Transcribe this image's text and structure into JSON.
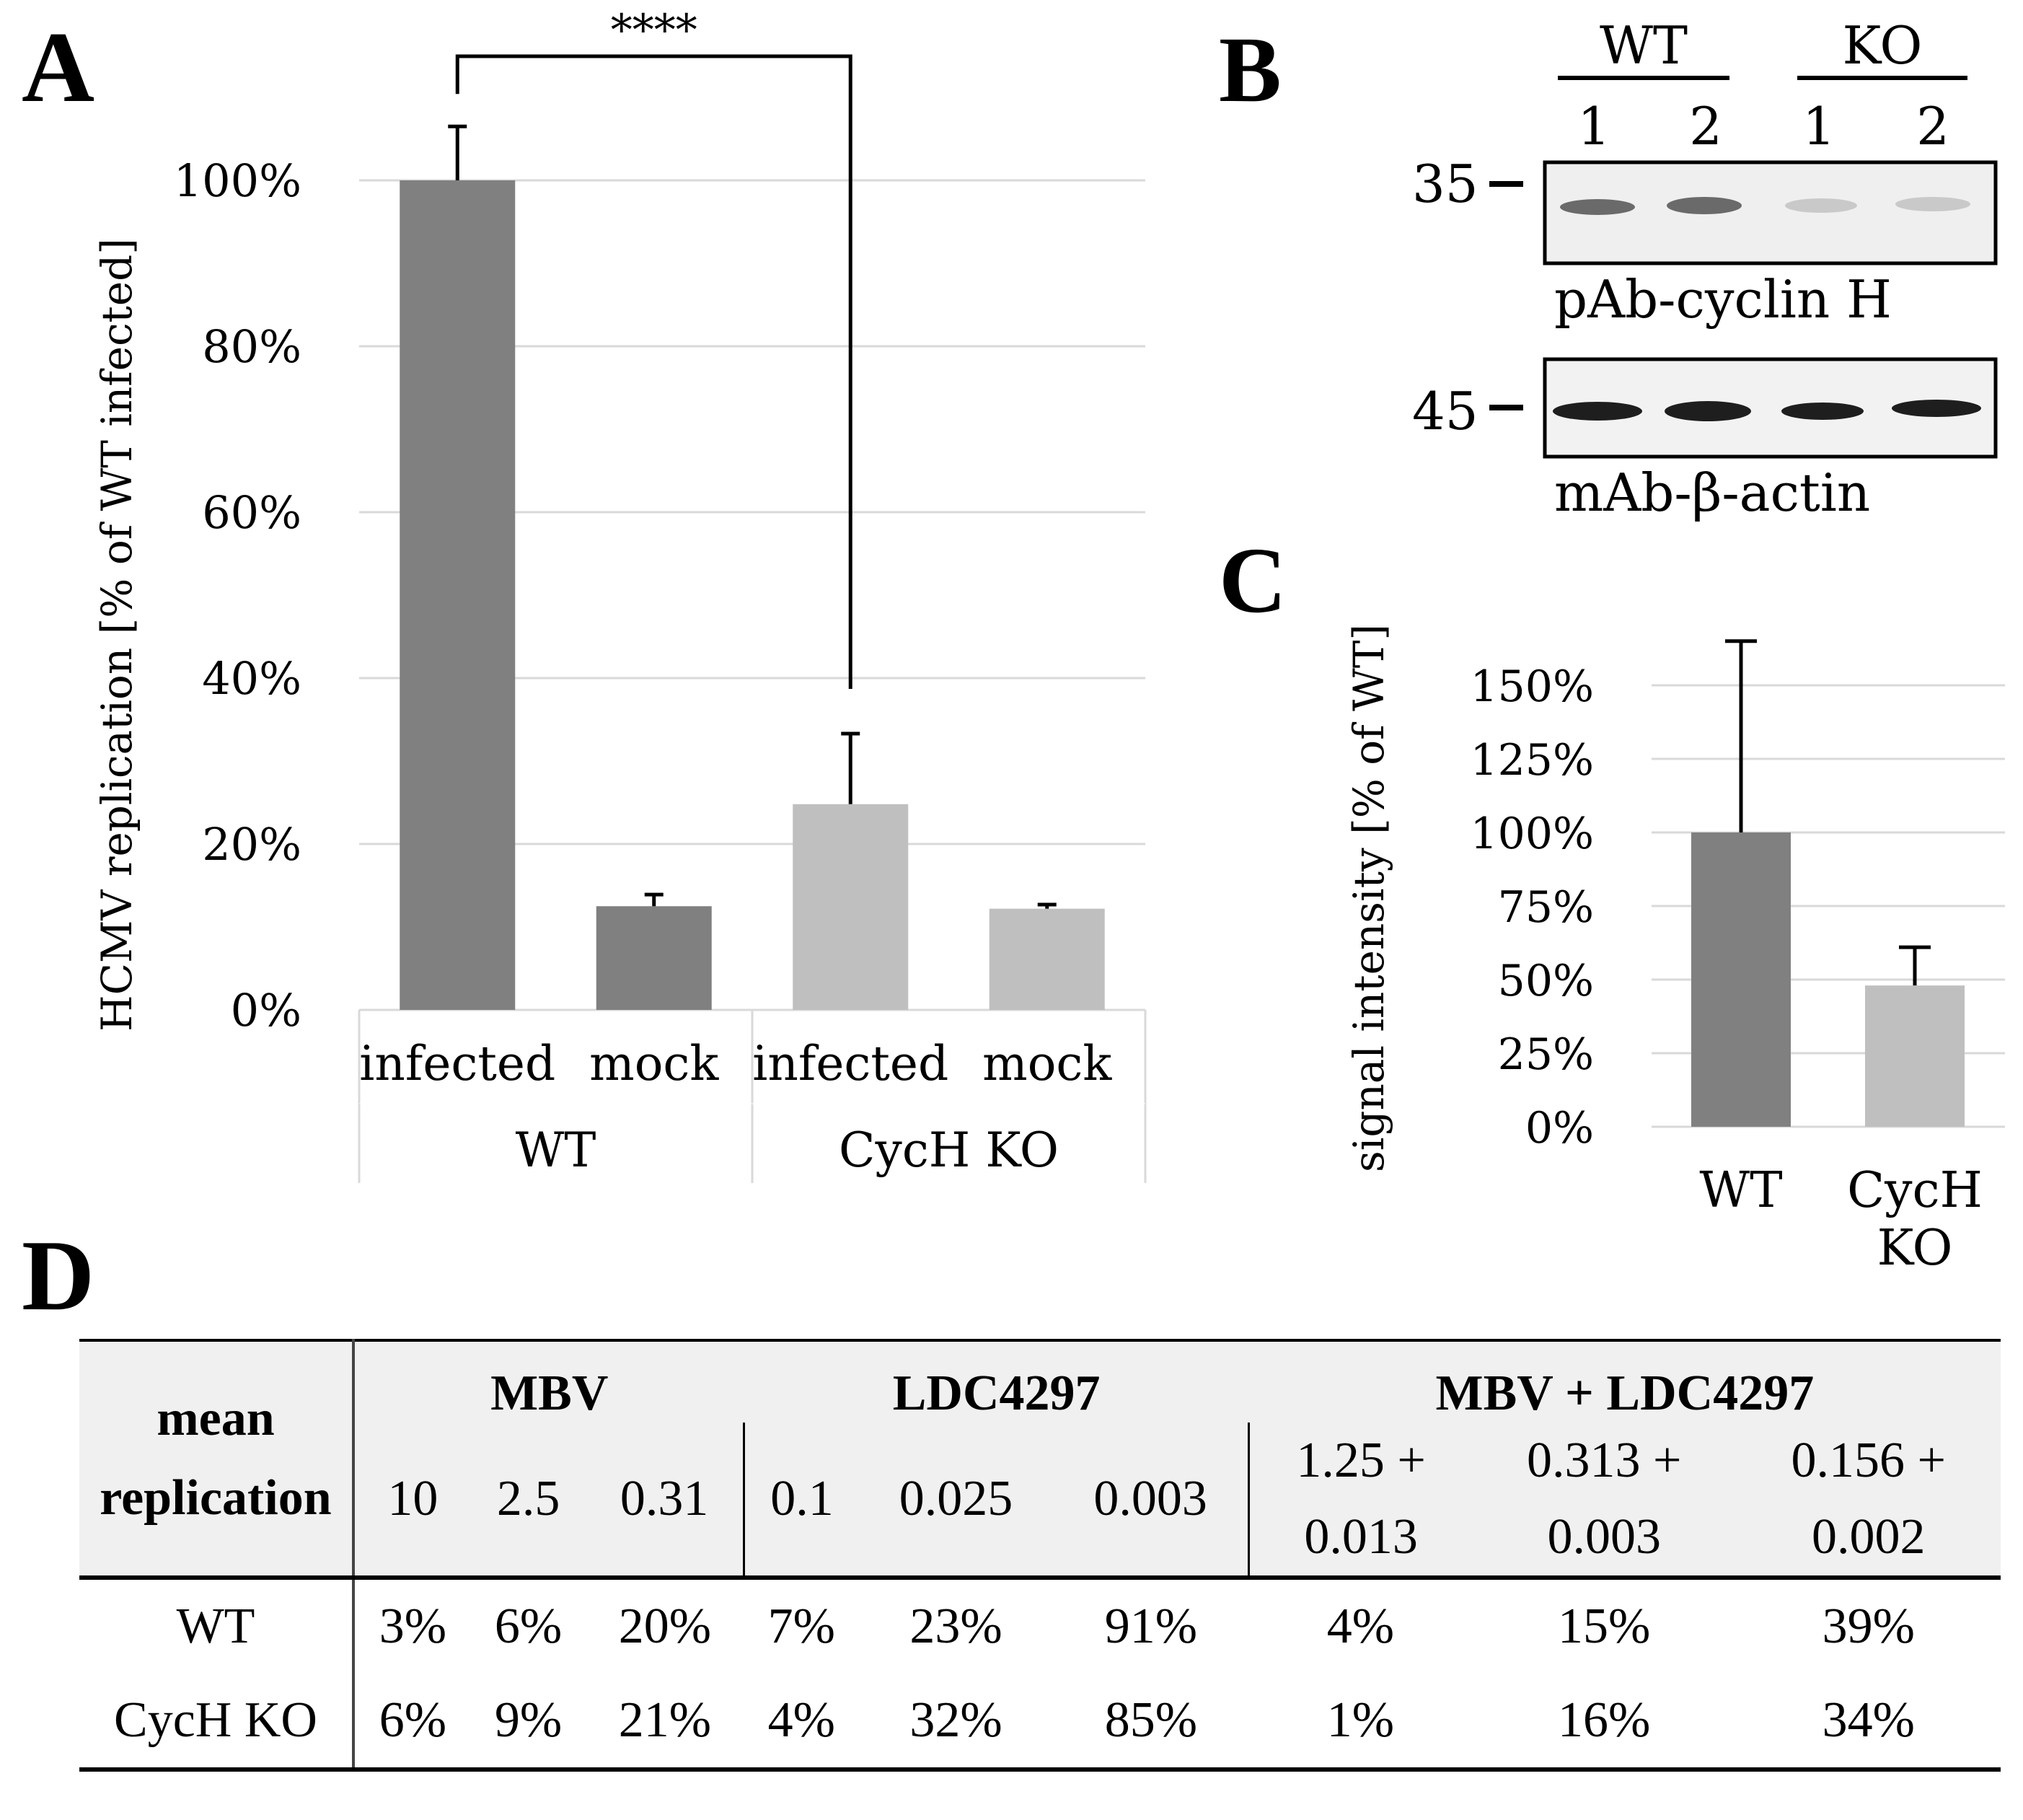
{
  "panels": {
    "a": "A",
    "b": "B",
    "c": "C",
    "d": "D"
  },
  "chart_data": [
    {
      "id": "A",
      "type": "bar",
      "ylabel": "HCMV replication [% of WT infected]",
      "yticks": [
        "0%",
        "20%",
        "40%",
        "60%",
        "80%",
        "100%"
      ],
      "ylim": [
        0,
        100
      ],
      "categories": [
        "infected",
        "mock",
        "infected",
        "mock"
      ],
      "groups": [
        "WT",
        "CycH KO"
      ],
      "values": [
        100,
        12.5,
        24.8,
        12.2
      ],
      "errors": [
        6.5,
        1.4,
        8.5,
        0.5
      ],
      "colors": [
        "#808080",
        "#808080",
        "#bfbfbf",
        "#bfbfbf"
      ],
      "significance": "****",
      "grid": true
    },
    {
      "id": "C",
      "type": "bar",
      "ylabel": "signal intensity [% of WT]",
      "yticks": [
        "0%",
        "25%",
        "50%",
        "75%",
        "100%",
        "125%",
        "150%"
      ],
      "ylim": [
        0,
        150
      ],
      "categories": [
        "WT",
        "CycH KO"
      ],
      "values": [
        100,
        48
      ],
      "errors": [
        65,
        13
      ],
      "colors": [
        "#808080",
        "#bfbfbf"
      ],
      "grid": true
    }
  ],
  "blot": {
    "groups": [
      "WT",
      "KO"
    ],
    "lanes": [
      "1",
      "2",
      "1",
      "2"
    ],
    "markers": [
      "35",
      "45"
    ],
    "labels": [
      "pAb-cyclin H",
      "mAb-β-actin"
    ]
  },
  "table": {
    "row_header": [
      "mean",
      "replication"
    ],
    "groups": [
      "MBV",
      "LDC4297",
      "MBV + LDC4297"
    ],
    "concentrations": [
      [
        "10"
      ],
      [
        "2.5"
      ],
      [
        "0.31"
      ],
      [
        "0.1"
      ],
      [
        "0.025"
      ],
      [
        "0.003"
      ],
      [
        "1.25 +",
        "0.013"
      ],
      [
        "0.313 +",
        "0.003"
      ],
      [
        "0.156 +",
        "0.002"
      ]
    ],
    "rows": [
      {
        "label": "WT",
        "values": [
          "3%",
          "6%",
          "20%",
          "7%",
          "23%",
          "91%",
          "4%",
          "15%",
          "39%"
        ]
      },
      {
        "label": "CycH KO",
        "values": [
          "6%",
          "9%",
          "21%",
          "4%",
          "32%",
          "85%",
          "1%",
          "16%",
          "34%"
        ]
      }
    ]
  }
}
